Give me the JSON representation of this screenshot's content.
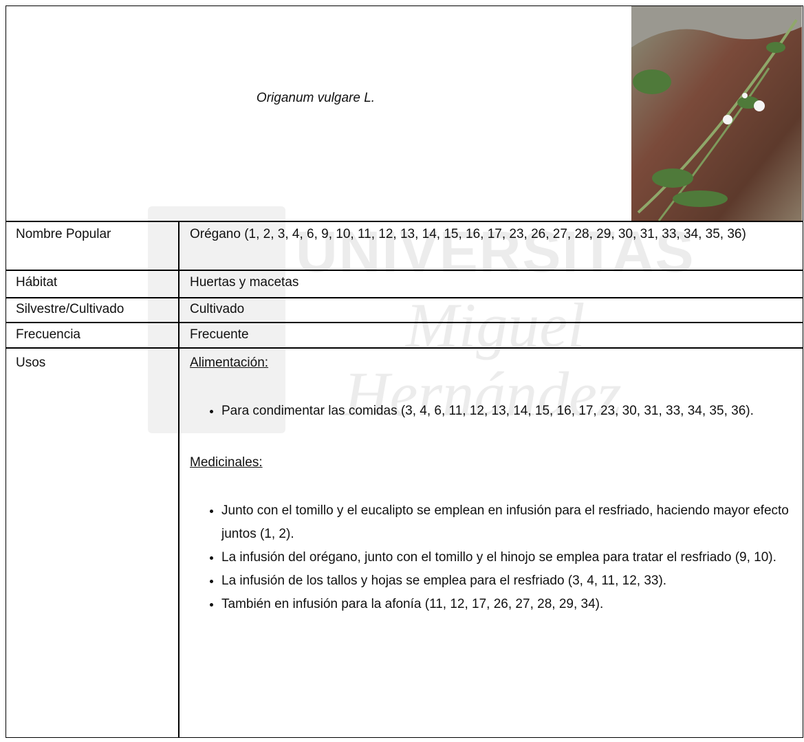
{
  "header": {
    "species": "Origanum vulgare L."
  },
  "table": {
    "rows": [
      [
        "Nombre Popular",
        "Orégano (1, 2, 3, 4, 6, 9, 10, 11, 12, 13, 14, 15, 16, 17, 23, 26, 27, 28, 29, 30, 31, 33, 34, 35, 36)"
      ],
      [
        "Hábitat",
        "Huertas y macetas"
      ],
      [
        "Silvestre/Cultivado",
        "Cultivado"
      ],
      [
        "Frecuencia",
        "Frecuente"
      ]
    ]
  },
  "uses": {
    "label": "Usos",
    "sections": [
      {
        "heading": "Alimentación:",
        "items": [
          "Para condimentar las comidas (3, 4, 6, 11, 12, 13, 14, 15, 16, 17, 23, 30, 31, 33, 34, 35, 36)."
        ]
      },
      {
        "heading": "Medicinales:",
        "items": [
          "Junto con el tomillo y el eucalipto se emplean en infusión para el resfriado, haciendo mayor efecto juntos (1, 2).",
          "La infusión del orégano, junto con el tomillo y el hinojo se emplea para tratar el resfriado (9, 10).",
          "La infusión de los tallos y hojas se emplea para el resfriado (3, 4, 11, 12, 33).",
          "También en infusión para la afonía (11, 12, 17, 26, 27, 28, 29, 34)."
        ]
      }
    ]
  },
  "watermark": [
    "UNIVERSITAS",
    "Miguel",
    "Hernández"
  ]
}
